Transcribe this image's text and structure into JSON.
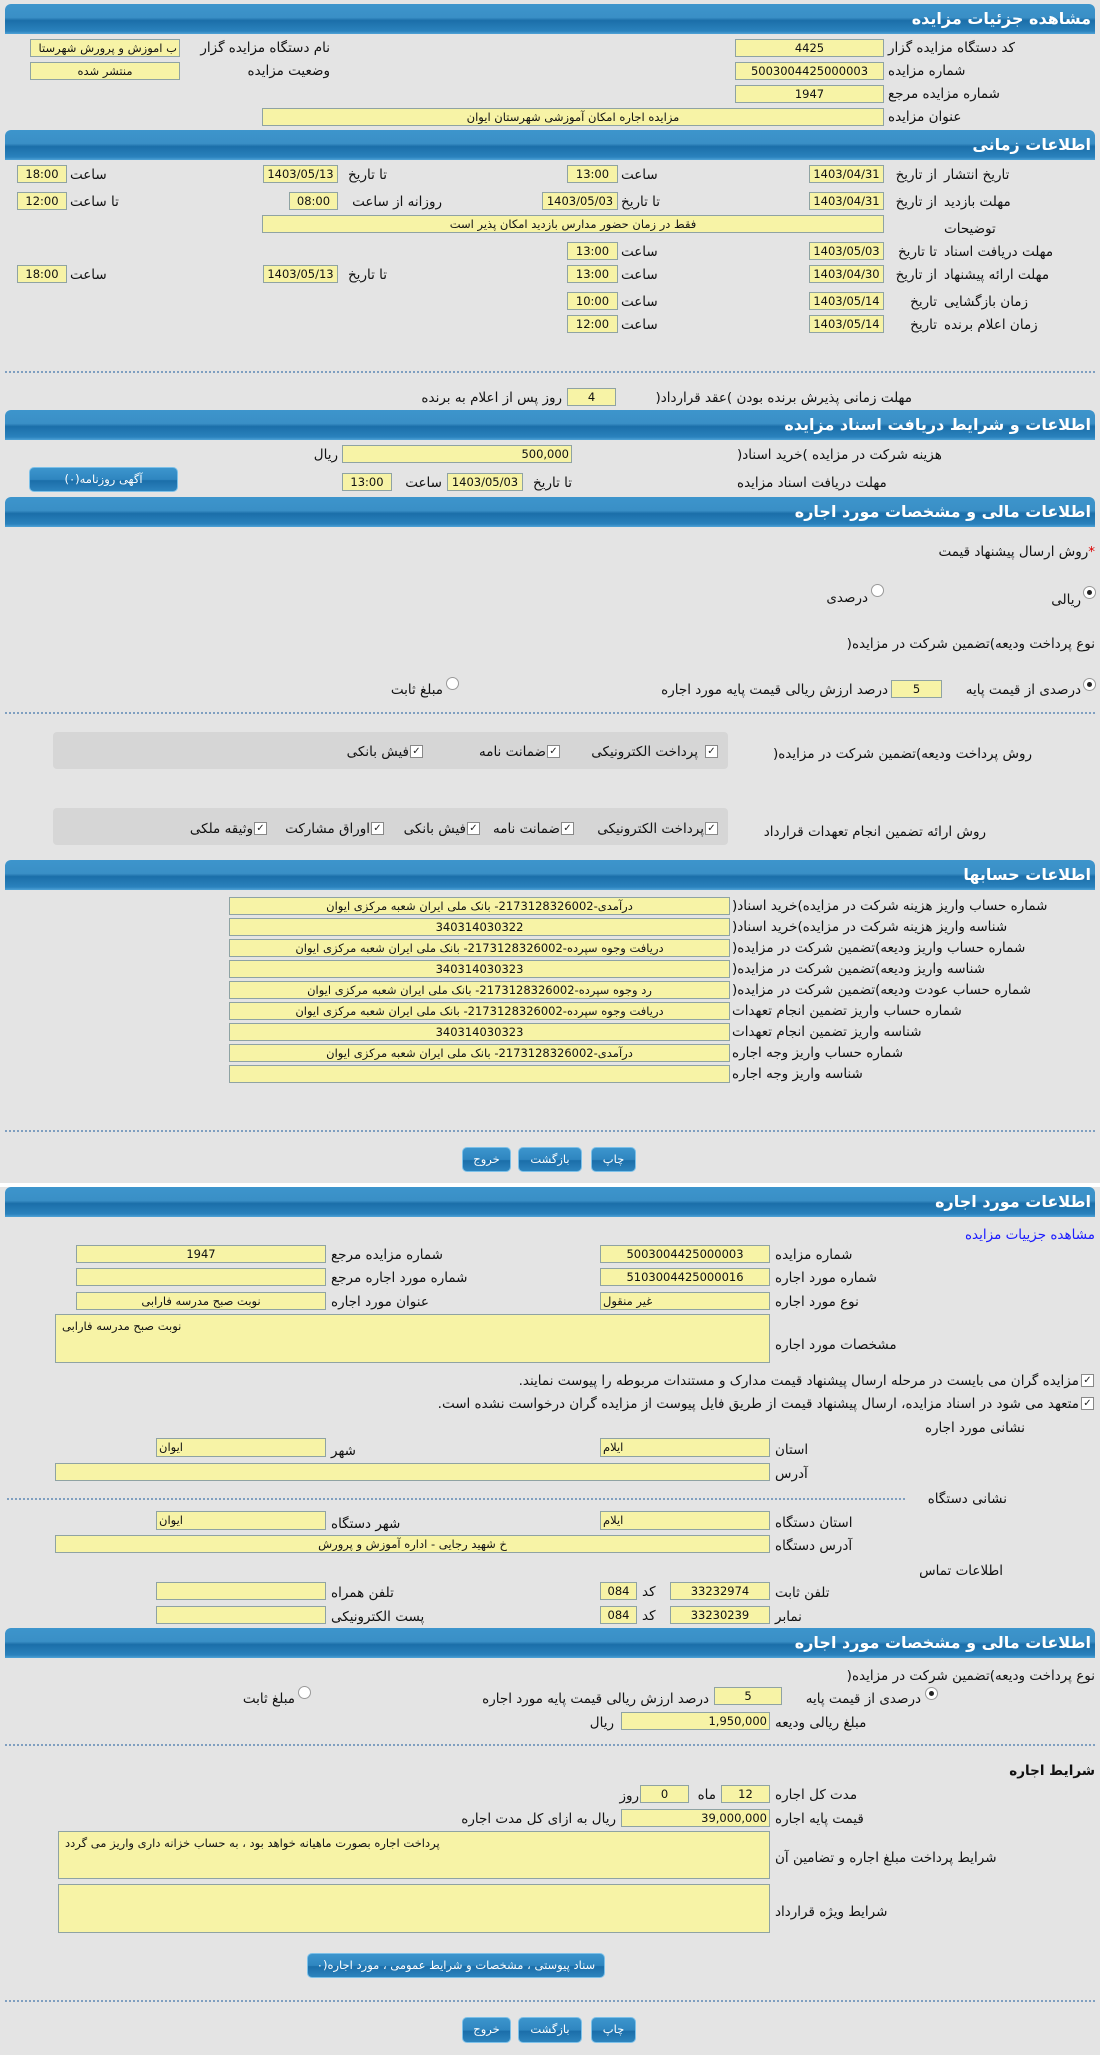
{
  "colors": {
    "header": "#2a82bd",
    "field": "#f7f3a6",
    "background": "#e4e4e4",
    "link": "#1a1aff"
  },
  "s1": {
    "title": "مشاهده جزئیات مزایده",
    "org_code_label": "کد دستگاه مزایده گزار",
    "org_code": "4425",
    "org_name_label": "نام دستگاه مزایده گزار",
    "org_name": "ب اموزش و پرورش شهرستا",
    "auction_no_label": "شماره مزایده",
    "auction_no": "5003004425000003",
    "status_label": "وضعیت مزایده",
    "status": "منتشر شده",
    "ref_no_label": "شماره مزایده مرجع",
    "ref_no": "1947",
    "title_label": "عنوان مزایده",
    "auction_title": "مزایده اجاره امکان آموزشی شهرستان ایوان"
  },
  "time": {
    "title": "اطلاعات زمانی",
    "from_date": "از تاریخ",
    "to_date": "تا تاریخ",
    "date": "تاریخ",
    "hour": "ساعت",
    "to_hour": "تا ساعت",
    "daily_from": "روزانه از ساعت",
    "publish": {
      "label": "تاریخ انتشار",
      "from": "1403/04/31",
      "from_time": "13:00",
      "to": "1403/05/13",
      "to_time": "18:00"
    },
    "visit": {
      "label": "مهلت بازدید",
      "from": "1403/04/31",
      "to": "1403/05/03",
      "daily_from": "08:00",
      "daily_to": "12:00"
    },
    "desc": {
      "label": "توضیحات",
      "value": "فقط در زمان حضور مدارس بازدید امکان پذیر است"
    },
    "docs": {
      "label": "مهلت دریافت اسناد",
      "to": "1403/05/03",
      "to_time": "13:00"
    },
    "offer": {
      "label": "مهلت ارائه پیشنهاد",
      "from": "1403/04/30",
      "from_time": "13:00",
      "to": "1403/05/13",
      "to_time": "18:00"
    },
    "opening": {
      "label": "زمان بازگشایی",
      "date": "1403/05/14",
      "time": "10:00"
    },
    "winner": {
      "label": "زمان اعلام برنده",
      "date": "1403/05/14",
      "time": "12:00"
    },
    "acceptance_label": "مهلت زمانی پذیرش برنده بودن )عقد قرارداد(",
    "acceptance_days": "4",
    "acceptance_suffix": "روز پس از اعلام به برنده"
  },
  "docs": {
    "title": "اطلاعات و شرایط دریافت اسناد مزایده",
    "fee_label": "هزینه شرکت در مزایده )خرید اسناد(",
    "fee": "500,000",
    "rial": "ریال",
    "deadline_label": "مهلت دریافت اسناد مزایده",
    "to_date": "تا تاریخ",
    "date": "1403/05/03",
    "hour": "ساعت",
    "time": "13:00",
    "ad_button": "آگهی روزنامه(۰)"
  },
  "fin": {
    "title": "اطلاعات مالی و مشخصات مورد اجاره",
    "method_label": "روش ارسال پیشنهاد قیمت",
    "rial_opt": "ریالی",
    "percent_opt": "درصدی",
    "selected_method": "ریالی",
    "deposit_type_label": "نوع پرداخت ودیعه)تضمین شرکت در مزایده(",
    "pct_opt": "درصدی از قیمت پایه",
    "pct": "5",
    "pct_suffix": "درصد ارزش ریالی قیمت پایه مورد اجاره",
    "fixed_opt": "مبلغ ثابت",
    "selected_deposit": "درصدی از قیمت پایه",
    "deposit_method_label": "روش پرداخت ودیعه)تضمین شرکت در مزایده(",
    "deposit_methods": [
      {
        "label": "پرداخت الکترونیکی",
        "checked": true
      },
      {
        "label": "ضمانت نامه",
        "checked": true
      },
      {
        "label": "فیش بانکی",
        "checked": true
      }
    ],
    "guarantee_label": "روش ارائه تضمین انجام تعهدات قرارداد",
    "guarantees": [
      {
        "label": "پرداخت الکترونیکی",
        "checked": true
      },
      {
        "label": "ضمانت نامه",
        "checked": true
      },
      {
        "label": "فیش بانکی",
        "checked": true
      },
      {
        "label": "اوراق مشارکت",
        "checked": true
      },
      {
        "label": "وثیقه ملکی",
        "checked": true
      }
    ]
  },
  "accounts": {
    "title": "اطلاعات حسابها",
    "rows": [
      {
        "label": "شماره حساب واریز هزینه شرکت در مزایده)خرید اسناد(",
        "value": "درآمدی-2173128326002- بانک ملی ایران شعبه مرکزی ایوان"
      },
      {
        "label": "شناسه واریز هزینه شرکت در مزایده)خرید اسناد(",
        "value": "340314030322"
      },
      {
        "label": "شماره حساب واریز ودیعه)تضمین شرکت در مزایده(",
        "value": "دریافت وجوه سپرده-2173128326002- بانک ملی ایران شعبه مرکزی ایوان"
      },
      {
        "label": "شناسه واریز ودیعه)تضمین شرکت در مزایده(",
        "value": "340314030323"
      },
      {
        "label": "شماره حساب عودت ودیعه)تضمین شرکت در مزایده(",
        "value": "رد وجوه سپرده-2173128326002- بانک ملی ایران شعبه مرکزی ایوان"
      },
      {
        "label": "شماره حساب واریز تضمین انجام تعهدات",
        "value": "دریافت وجوه سپرده-2173128326002- بانک ملی ایران شعبه مرکزی ایوان"
      },
      {
        "label": "شناسه واریز تضمین انجام تعهدات",
        "value": "340314030323"
      },
      {
        "label": "شماره حساب واریز وجه اجاره",
        "value": "درآمدی-2173128326002- بانک ملی ایران شعبه مرکزی ایوان"
      },
      {
        "label": "شناسه واریز وجه اجاره",
        "value": ""
      }
    ]
  },
  "actions": {
    "print": "چاپ",
    "back": "بازگشت",
    "exit": "خروج"
  },
  "lease": {
    "title": "اطلاعات مورد اجاره",
    "details_link": "مشاهده جزییات مزایده",
    "auction_no_label": "شماره مزایده",
    "auction_no": "5003004425000003",
    "ref_no_label": "شماره مزایده مرجع",
    "ref_no": "1947",
    "item_no_label": "شماره مورد اجاره",
    "item_no": "5103004425000016",
    "item_ref_label": "شماره مورد اجاره مرجع",
    "item_ref": "",
    "type_label": "نوع مورد اجاره",
    "type": "غیر منقول",
    "item_title_label": "عنوان مورد اجاره",
    "item_title": "نوبت صبح مدرسه فارابی",
    "spec_label": "مشخصات مورد اجاره",
    "spec": "نوبت صبح مدرسه فارابی",
    "check1": "مزایده گران می بایست در مرحله ارسال پیشنهاد قیمت مدارک و مستندات مربوطه را پیوست نمایند.",
    "check2": "متعهد می شود در اسناد مزایده، ارسال پیشنهاد قیمت از طریق فایل پیوست از مزایده گران درخواست نشده است.",
    "addr_title": "نشانی مورد اجاره",
    "province_label": "استان",
    "province": "ایلام",
    "city_label": "شهر",
    "city": "ایوان",
    "address_label": "آدرس",
    "address": "",
    "org_addr_title": "نشانی دستگاه",
    "org_province_label": "استان دستگاه",
    "org_province": "ایلام",
    "org_city_label": "شهر دستگاه",
    "org_city": "ایوان",
    "org_address_label": "آدرس دستگاه",
    "org_address": "خ شهید رجایی - اداره آموزش و پرورش",
    "contact_title": "اطلاعات تماس",
    "phone_label": "تلفن ثابت",
    "phone": "33232974",
    "code_label": "کد",
    "phone_code": "084",
    "mobile_label": "تلفن همراه",
    "mobile": "",
    "fax_label": "نمابر",
    "fax": "33230239",
    "fax_code": "084",
    "email_label": "پست الکترونیکی",
    "email": ""
  },
  "fin2": {
    "title": "اطلاعات مالی و مشخصات مورد اجاره",
    "deposit_type_label": "نوع پرداخت ودیعه)تضمین شرکت در مزایده(",
    "pct_opt": "درصدی از قیمت پایه",
    "pct": "5",
    "pct_suffix": "درصد ارزش ریالی قیمت پایه مورد اجاره",
    "fixed_opt": "مبلغ ثابت",
    "deposit_label": "مبلغ ریالی ودیعه",
    "deposit": "1,950,000",
    "rial": "ریال",
    "terms_title": "شرایط اجاره",
    "duration_label": "مدت کل اجاره",
    "months": "12",
    "month_unit": "ماه",
    "days": "0",
    "day_unit": "روز",
    "base_price_label": "قیمت پایه اجاره",
    "base_price": "39,000,000",
    "base_price_suffix": "ریال به ازای کل مدت اجاره",
    "payment_terms_label": "شرایط پرداخت مبلغ اجاره و تضامین آن",
    "payment_terms": "پرداخت اجاره بصورت ماهیانه خواهد بود ، به حساب خزانه داری واریز می گردد",
    "special_terms_label": "شرایط ویژه قرارداد",
    "special_terms": "",
    "attachments_button": "سناد پیوستی ، مشخصات و شرایط عمومی ، مورد اجاره(۰"
  }
}
